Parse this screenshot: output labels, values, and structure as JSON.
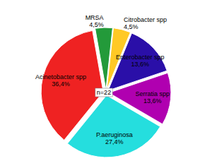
{
  "chart_data": {
    "type": "pie",
    "categories": [
      "MRSA",
      "Citrobacter spp",
      "Enterobacter spp",
      "Serratia spp",
      "P.aeruginosa",
      "Acinetobacter spp"
    ],
    "values": [
      4.5,
      4.5,
      13.6,
      13.6,
      27.4,
      36.4
    ],
    "value_labels": [
      "4,5%",
      "4,5%",
      "13,6%",
      "13,6%",
      "27,4%",
      "36,4%"
    ],
    "colors": [
      "#239a3a",
      "#ffc925",
      "#2a0fa8",
      "#b000b0",
      "#25dede",
      "#ef2222"
    ],
    "annotation": "n=22",
    "data_labels": true
  }
}
